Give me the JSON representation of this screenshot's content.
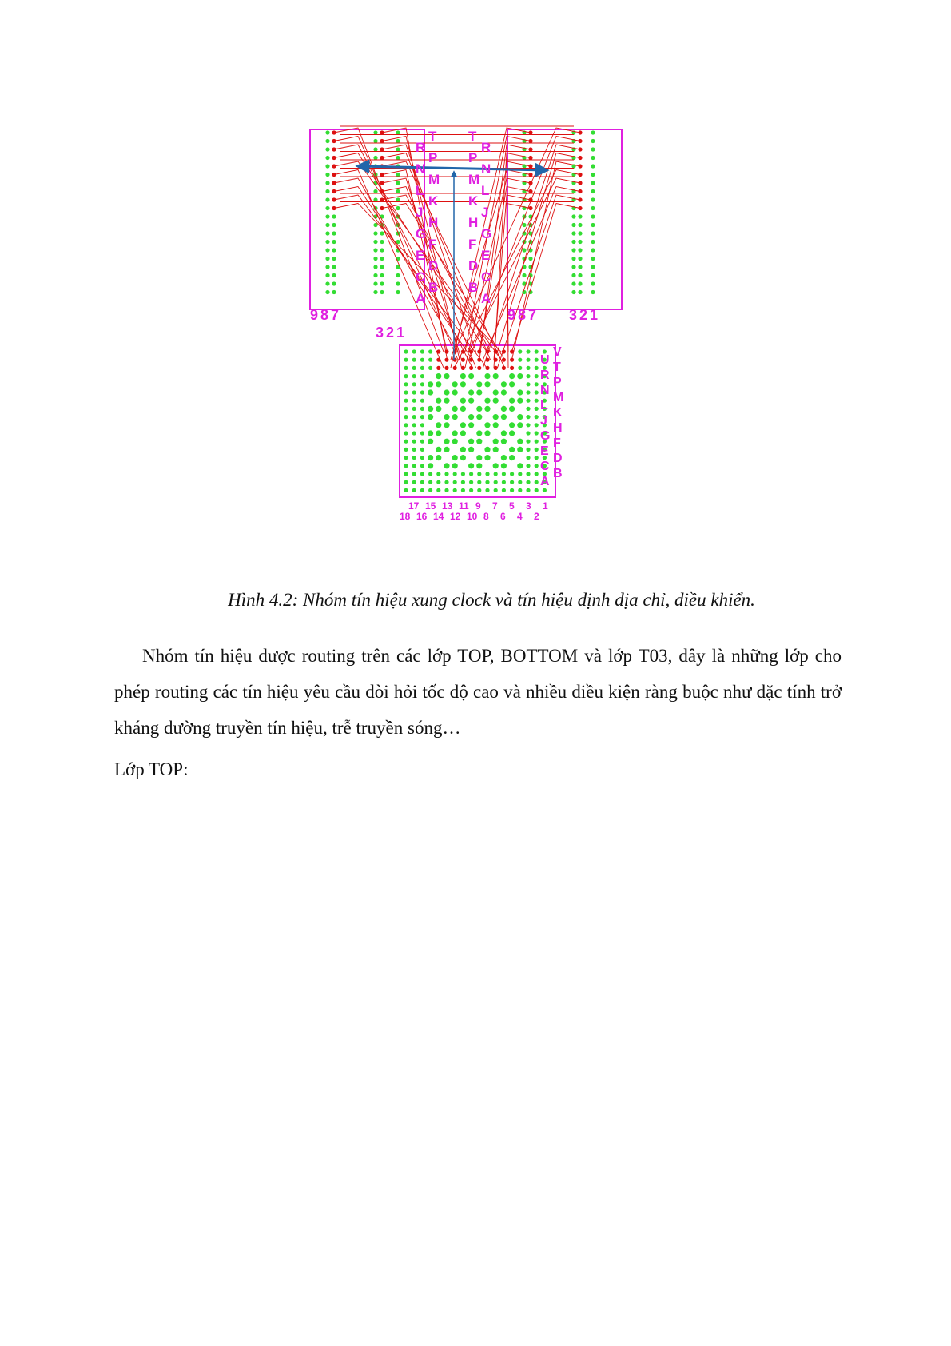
{
  "figure": {
    "left_row_letters": [
      "R",
      "N",
      "L",
      "J",
      "G",
      "E",
      "C",
      "A"
    ],
    "right_row_letters": [
      "T",
      "P",
      "M",
      "K",
      "H",
      "F",
      "D",
      "B"
    ],
    "left_conn_right_letters": [
      "T",
      "P",
      "M",
      "K",
      "H",
      "F",
      "D",
      "B"
    ],
    "right_conn_letters_a": [
      "T",
      "P",
      "M",
      "K",
      "H",
      "F",
      "D",
      "B"
    ],
    "right_conn_letters_b": [
      "R",
      "N",
      "L",
      "J",
      "G",
      "E",
      "C",
      "A"
    ],
    "labels": {
      "left_987": "987",
      "left_321": "321",
      "right_987": "987",
      "right_321": "321"
    },
    "bga_rows_a": [
      "U",
      "R",
      "N",
      "L",
      "J",
      "G",
      "E",
      "C",
      "A"
    ],
    "bga_rows_b": [
      "V",
      "T",
      "P",
      "M",
      "K",
      "H",
      "F",
      "D",
      "B"
    ],
    "bga_cols_top": [
      "17",
      "15",
      "13",
      "11",
      "9",
      "7",
      "5",
      "3",
      "1"
    ],
    "bga_cols_bottom": [
      "18",
      "16",
      "14",
      "12",
      "10",
      "8",
      "6",
      "4",
      "2"
    ],
    "colors": {
      "outline": "#e020e0",
      "pad": "#33dd33",
      "net": "#dd1111",
      "arrow": "#2266aa"
    }
  },
  "caption": "Hình 4.2: Nhóm tín hiệu xung clock và tín hiệu định địa chỉ, điều khiển.",
  "paragraph": "Nhóm tín hiệu được routing trên các lớp TOP, BOTTOM và lớp T03, đây là những lớp cho phép routing các tín hiệu yêu cầu đòi hỏi tốc độ cao và nhiều điều kiện ràng buộc như đặc tính trở kháng đường truyền tín hiệu, trễ truyền sóng…",
  "heading": "Lớp TOP:"
}
